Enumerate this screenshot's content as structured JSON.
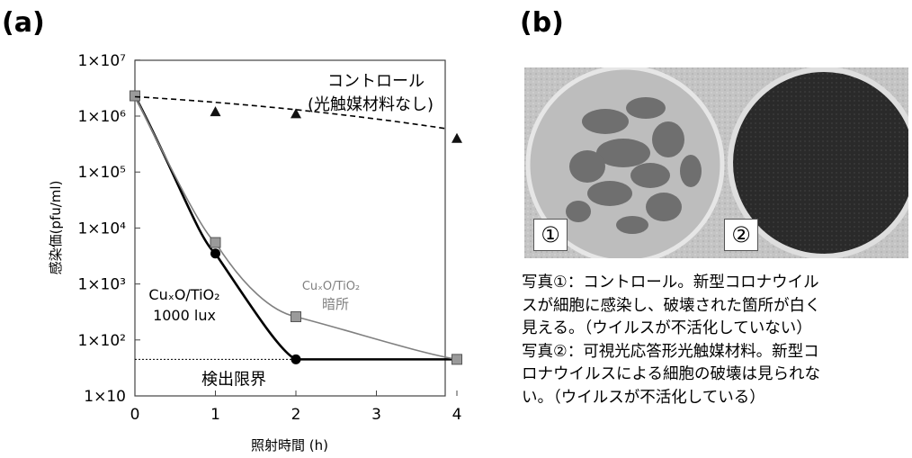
{
  "panels": {
    "a_label": "(a)",
    "b_label": "(b)"
  },
  "chart_data": {
    "type": "line",
    "xlabel": "照射時間 (h)",
    "ylabel": "感染価(pfu/ml)",
    "y_scale": "log",
    "xlim": [
      0,
      4.3
    ],
    "ylim": [
      10,
      10000000
    ],
    "x_ticks": [
      "0",
      "1",
      "2",
      "3",
      "4"
    ],
    "y_ticks": [
      "1×10",
      "1×10²",
      "1×10³",
      "1×10⁴",
      "1×10⁵",
      "1×10⁶",
      "1×10⁷"
    ],
    "series": [
      {
        "name": "コントロール (光触媒材料なし)",
        "color": "#000000",
        "line": "dashed",
        "marker": "triangle",
        "x": [
          0,
          1,
          2,
          4
        ],
        "y": [
          2300000,
          1200000,
          1100000,
          400000
        ]
      },
      {
        "name": "CuₓO/TiO₂ 1000 lux",
        "color": "#000000",
        "line": "solid",
        "marker": "circle",
        "x": [
          0,
          1,
          2,
          4
        ],
        "y": [
          2300000,
          3500,
          45,
          45
        ]
      },
      {
        "name": "CuₓO/TiO₂ 暗所",
        "color": "#808080",
        "line": "solid",
        "marker": "square",
        "x": [
          0,
          1,
          2,
          4
        ],
        "y": [
          2300000,
          5500,
          260,
          45
        ]
      }
    ],
    "detection_limit": {
      "value": 45,
      "label": "検出限界"
    },
    "annotations": {
      "control_line1": "コントロール",
      "control_line2": "(光触媒材料なし)",
      "light_line1": "CuₓO/TiO₂",
      "light_line2": "1000 lux",
      "dark_line1": "CuₓO/TiO₂",
      "dark_line2": "暗所"
    }
  },
  "photo": {
    "label1": "①",
    "label2": "②"
  },
  "caption": {
    "lines": [
      "写真①：コントロール。新型コロナウイル",
      "スが細胞に感染し、破壊された箇所が白く",
      "見える。（ウイルスが不活化していない）",
      "写真②：可視光応答形光触媒材料。新型コ",
      "ロナウイルスによる細胞の破壊は見られな",
      "い。（ウイルスが不活化している）"
    ]
  }
}
